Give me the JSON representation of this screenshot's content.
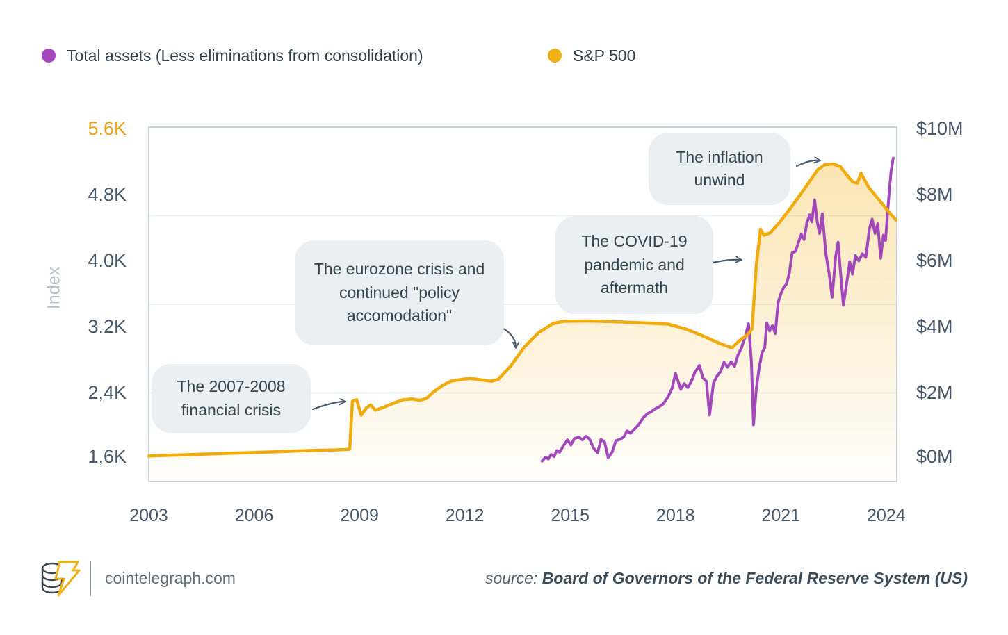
{
  "legend": {
    "items": [
      {
        "label": "Total assets (Less eliminations from consolidation)",
        "color": "#A348BC"
      },
      {
        "label": "S&P 500",
        "color": "#F0B014"
      }
    ]
  },
  "chart_data": {
    "type": "line",
    "title": "",
    "x_axis": {
      "range": [
        2003,
        2024.3
      ],
      "tick_years": [
        2003,
        2006,
        2009,
        2012,
        2015,
        2018,
        2021,
        2024
      ],
      "tick_labels": [
        "2003",
        "2006",
        "2009",
        "2012",
        "2015",
        "2018",
        "2021",
        "2024"
      ]
    },
    "left_axis": {
      "title": "Index",
      "range": [
        1600,
        5600
      ],
      "tick_labels": [
        "5.6K",
        "4.8K",
        "4.0K",
        "3.2K",
        "2,4K",
        "1,6K"
      ],
      "top_label_color": "#E8A31A",
      "label_color": "#47586A"
    },
    "right_axis": {
      "unit": "$M",
      "range": [
        0,
        10
      ],
      "tick_labels": [
        "$10M",
        "$8M",
        "$6M",
        "$4M",
        "$2M",
        "$0M"
      ],
      "label_color": "#47586A"
    },
    "grid": {
      "on": true,
      "color": "#E7EDF0",
      "border_color": "#C6D1D9"
    },
    "series": [
      {
        "name": "S&P 500",
        "color": "#F0AC0E",
        "axis": "right",
        "area_fill": true,
        "points": [
          [
            2003.0,
            0.72
          ],
          [
            2003.6,
            0.74
          ],
          [
            2004.2,
            0.76
          ],
          [
            2004.8,
            0.78
          ],
          [
            2005.4,
            0.8
          ],
          [
            2006.0,
            0.82
          ],
          [
            2006.6,
            0.84
          ],
          [
            2007.2,
            0.86
          ],
          [
            2007.8,
            0.88
          ],
          [
            2008.3,
            0.89
          ],
          [
            2008.72,
            0.91
          ],
          [
            2008.8,
            2.26
          ],
          [
            2008.92,
            2.31
          ],
          [
            2009.05,
            1.87
          ],
          [
            2009.2,
            2.08
          ],
          [
            2009.32,
            2.16
          ],
          [
            2009.45,
            2.01
          ],
          [
            2009.6,
            2.06
          ],
          [
            2009.8,
            2.14
          ],
          [
            2010.0,
            2.22
          ],
          [
            2010.25,
            2.31
          ],
          [
            2010.5,
            2.33
          ],
          [
            2010.7,
            2.29
          ],
          [
            2010.9,
            2.34
          ],
          [
            2011.1,
            2.52
          ],
          [
            2011.35,
            2.7
          ],
          [
            2011.6,
            2.83
          ],
          [
            2011.9,
            2.88
          ],
          [
            2012.15,
            2.91
          ],
          [
            2012.45,
            2.87
          ],
          [
            2012.75,
            2.83
          ],
          [
            2012.95,
            2.88
          ],
          [
            2013.3,
            3.25
          ],
          [
            2013.7,
            3.8
          ],
          [
            2014.1,
            4.2
          ],
          [
            2014.5,
            4.45
          ],
          [
            2014.8,
            4.52
          ],
          [
            2015.5,
            4.53
          ],
          [
            2016.2,
            4.51
          ],
          [
            2017.0,
            4.48
          ],
          [
            2017.8,
            4.44
          ],
          [
            2018.3,
            4.3
          ],
          [
            2018.8,
            4.1
          ],
          [
            2019.2,
            3.92
          ],
          [
            2019.6,
            3.77
          ],
          [
            2019.85,
            4.0
          ],
          [
            2020.05,
            4.14
          ],
          [
            2020.18,
            4.31
          ],
          [
            2020.3,
            6.1
          ],
          [
            2020.42,
            7.12
          ],
          [
            2020.52,
            6.95
          ],
          [
            2020.7,
            7.02
          ],
          [
            2020.95,
            7.3
          ],
          [
            2021.3,
            7.75
          ],
          [
            2021.7,
            8.3
          ],
          [
            2022.05,
            8.8
          ],
          [
            2022.25,
            8.94
          ],
          [
            2022.5,
            8.96
          ],
          [
            2022.7,
            8.88
          ],
          [
            2022.9,
            8.62
          ],
          [
            2023.05,
            8.45
          ],
          [
            2023.18,
            8.42
          ],
          [
            2023.28,
            8.7
          ],
          [
            2023.5,
            8.3
          ],
          [
            2023.75,
            8.0
          ],
          [
            2024.0,
            7.7
          ],
          [
            2024.15,
            7.52
          ],
          [
            2024.28,
            7.38
          ]
        ]
      },
      {
        "name": "Total assets (Less eliminations from consolidation)",
        "color": "#A348BC",
        "axis": "left",
        "area_fill": false,
        "points": [
          [
            2014.2,
            1830
          ],
          [
            2014.3,
            1875
          ],
          [
            2014.38,
            1855
          ],
          [
            2014.46,
            1905
          ],
          [
            2014.54,
            1880
          ],
          [
            2014.62,
            1950
          ],
          [
            2014.7,
            1930
          ],
          [
            2014.8,
            2000
          ],
          [
            2014.92,
            2070
          ],
          [
            2015.02,
            2010
          ],
          [
            2015.12,
            2085
          ],
          [
            2015.25,
            2100
          ],
          [
            2015.35,
            2070
          ],
          [
            2015.45,
            2110
          ],
          [
            2015.55,
            2080
          ],
          [
            2015.67,
            1975
          ],
          [
            2015.78,
            1925
          ],
          [
            2015.88,
            2075
          ],
          [
            2015.98,
            2045
          ],
          [
            2016.08,
            1870
          ],
          [
            2016.2,
            1935
          ],
          [
            2016.3,
            2060
          ],
          [
            2016.42,
            2075
          ],
          [
            2016.52,
            2100
          ],
          [
            2016.62,
            2170
          ],
          [
            2016.72,
            2145
          ],
          [
            2016.85,
            2200
          ],
          [
            2016.95,
            2240
          ],
          [
            2017.08,
            2320
          ],
          [
            2017.2,
            2365
          ],
          [
            2017.3,
            2385
          ],
          [
            2017.42,
            2420
          ],
          [
            2017.52,
            2440
          ],
          [
            2017.65,
            2475
          ],
          [
            2017.78,
            2550
          ],
          [
            2017.9,
            2650
          ],
          [
            2018.0,
            2820
          ],
          [
            2018.1,
            2700
          ],
          [
            2018.15,
            2640
          ],
          [
            2018.25,
            2705
          ],
          [
            2018.35,
            2660
          ],
          [
            2018.45,
            2730
          ],
          [
            2018.55,
            2830
          ],
          [
            2018.68,
            2910
          ],
          [
            2018.78,
            2770
          ],
          [
            2018.88,
            2730
          ],
          [
            2018.97,
            2350
          ],
          [
            2019.08,
            2710
          ],
          [
            2019.18,
            2790
          ],
          [
            2019.28,
            2840
          ],
          [
            2019.38,
            2945
          ],
          [
            2019.48,
            2890
          ],
          [
            2019.58,
            2950
          ],
          [
            2019.68,
            2900
          ],
          [
            2019.78,
            3030
          ],
          [
            2019.88,
            3110
          ],
          [
            2019.98,
            3230
          ],
          [
            2020.08,
            3380
          ],
          [
            2020.16,
            2950
          ],
          [
            2020.22,
            2240
          ],
          [
            2020.3,
            2640
          ],
          [
            2020.38,
            2880
          ],
          [
            2020.46,
            3050
          ],
          [
            2020.54,
            3110
          ],
          [
            2020.6,
            3390
          ],
          [
            2020.68,
            3300
          ],
          [
            2020.76,
            3360
          ],
          [
            2020.84,
            3270
          ],
          [
            2020.92,
            3620
          ],
          [
            2021.0,
            3720
          ],
          [
            2021.08,
            3790
          ],
          [
            2021.16,
            3830
          ],
          [
            2021.24,
            3950
          ],
          [
            2021.32,
            4180
          ],
          [
            2021.42,
            4200
          ],
          [
            2021.5,
            4300
          ],
          [
            2021.58,
            4390
          ],
          [
            2021.66,
            4330
          ],
          [
            2021.74,
            4520
          ],
          [
            2021.82,
            4610
          ],
          [
            2021.88,
            4530
          ],
          [
            2021.96,
            4780
          ],
          [
            2022.04,
            4520
          ],
          [
            2022.1,
            4400
          ],
          [
            2022.18,
            4620
          ],
          [
            2022.28,
            4170
          ],
          [
            2022.38,
            3930
          ],
          [
            2022.46,
            3680
          ],
          [
            2022.56,
            4140
          ],
          [
            2022.63,
            4300
          ],
          [
            2022.7,
            3950
          ],
          [
            2022.78,
            3590
          ],
          [
            2022.88,
            3860
          ],
          [
            2022.96,
            4080
          ],
          [
            2023.04,
            3940
          ],
          [
            2023.12,
            4150
          ],
          [
            2023.22,
            4090
          ],
          [
            2023.32,
            4170
          ],
          [
            2023.42,
            4130
          ],
          [
            2023.52,
            4450
          ],
          [
            2023.6,
            4560
          ],
          [
            2023.68,
            4400
          ],
          [
            2023.76,
            4510
          ],
          [
            2023.84,
            4120
          ],
          [
            2023.92,
            4380
          ],
          [
            2023.98,
            4320
          ],
          [
            2024.08,
            4850
          ],
          [
            2024.14,
            5110
          ],
          [
            2024.2,
            5250
          ]
        ]
      }
    ],
    "annotations_on_chart": true,
    "legend_position": "top-left"
  },
  "annotations": [
    {
      "text": "The 2007-2008 financial crisis"
    },
    {
      "text": "The eurozone crisis and continued \"policy accomodation\""
    },
    {
      "text": "The COVID-19 pandemic and aftermath"
    },
    {
      "text": "The inflation unwind"
    }
  ],
  "footer": {
    "site": "cointelegraph.com",
    "source_prefix": "source: ",
    "source_text": "Board of Governors of the Federal Reserve System (US)"
  }
}
